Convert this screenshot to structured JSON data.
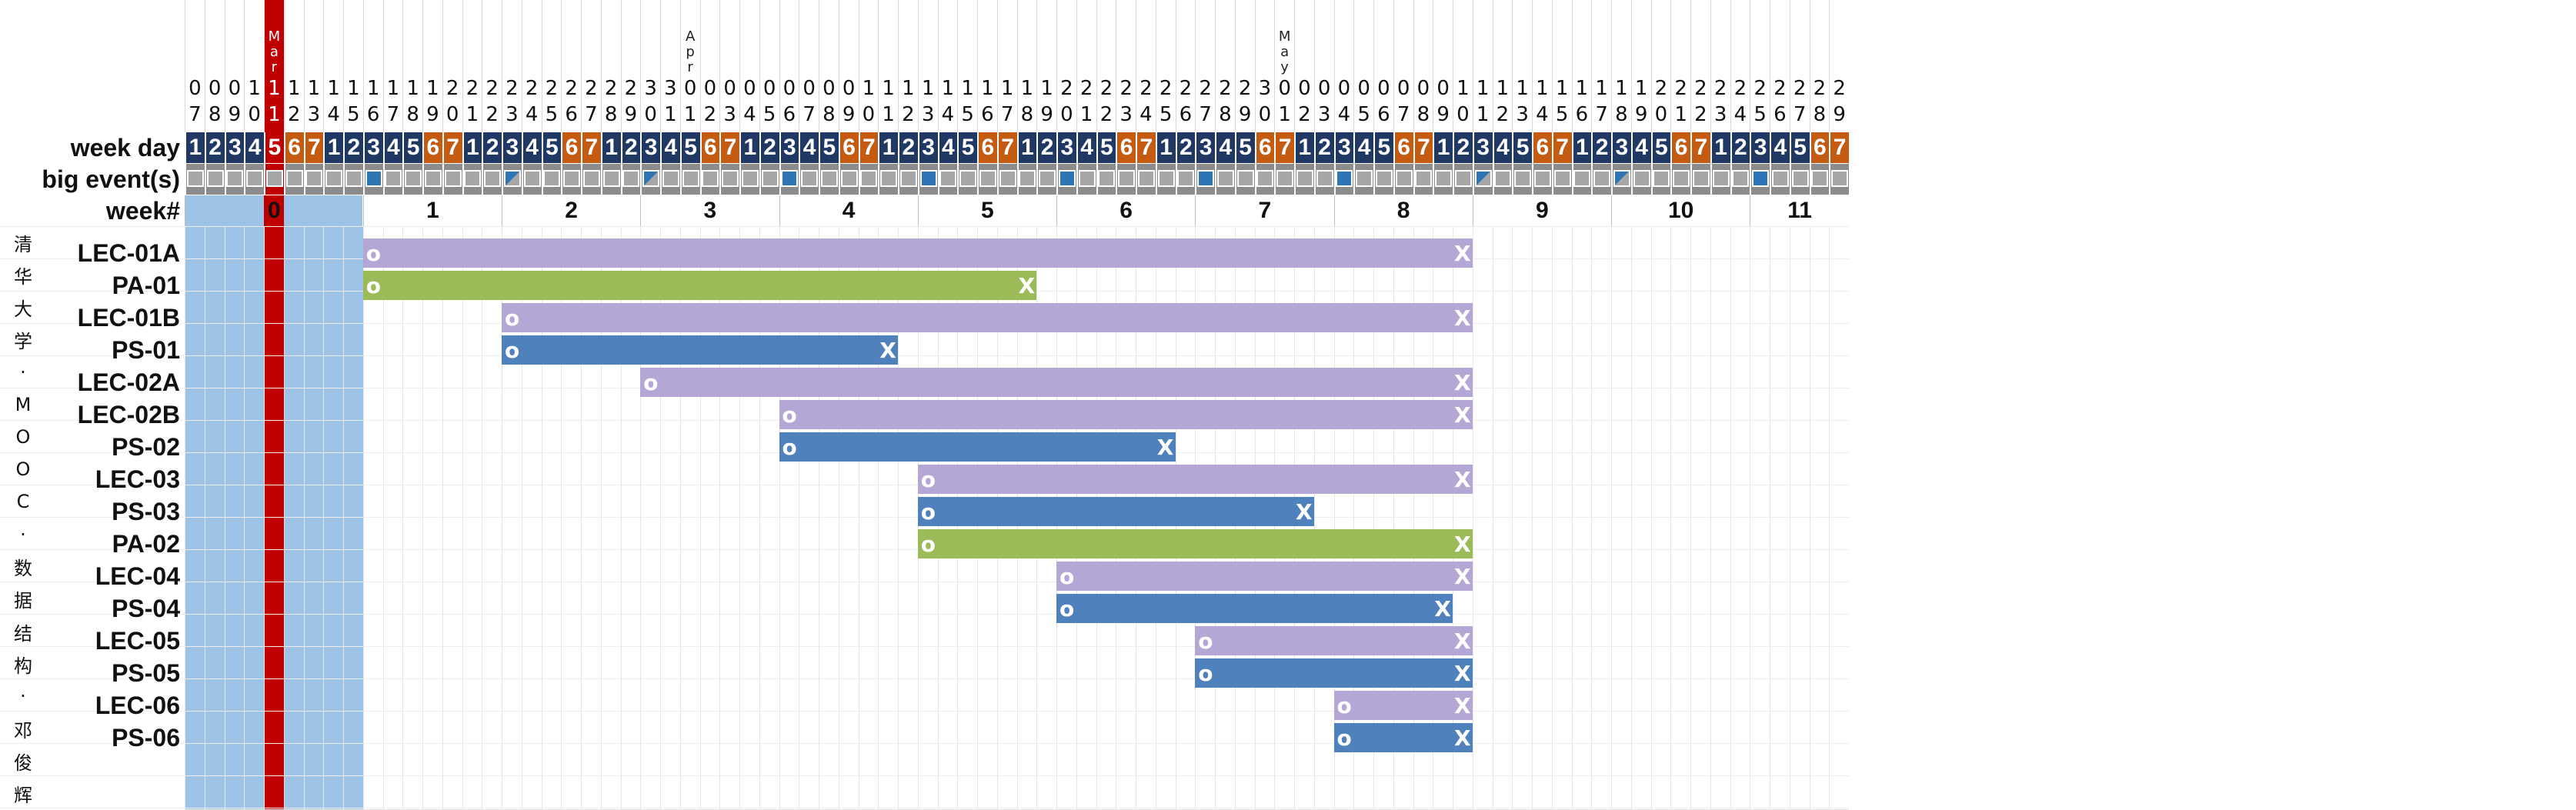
{
  "header": {
    "week_day_label": "week day",
    "big_event_label": "big event(s)",
    "week_label": "week#"
  },
  "days": [
    [
      "0",
      "7"
    ],
    [
      "0",
      "8"
    ],
    [
      "0",
      "9"
    ],
    [
      "1",
      "0"
    ],
    [
      "M",
      "a",
      "r",
      "1",
      "1"
    ],
    [
      "1",
      "2"
    ],
    [
      "1",
      "3"
    ],
    [
      "1",
      "4"
    ],
    [
      "1",
      "5"
    ],
    [
      "1",
      "6"
    ],
    [
      "1",
      "7"
    ],
    [
      "1",
      "8"
    ],
    [
      "1",
      "9"
    ],
    [
      "2",
      "0"
    ],
    [
      "2",
      "1"
    ],
    [
      "2",
      "2"
    ],
    [
      "2",
      "3"
    ],
    [
      "2",
      "4"
    ],
    [
      "2",
      "5"
    ],
    [
      "2",
      "6"
    ],
    [
      "2",
      "7"
    ],
    [
      "2",
      "8"
    ],
    [
      "2",
      "9"
    ],
    [
      "3",
      "0"
    ],
    [
      "3",
      "1"
    ],
    [
      "A",
      "p",
      "r",
      "0",
      "1"
    ],
    [
      "0",
      "2"
    ],
    [
      "0",
      "3"
    ],
    [
      "0",
      "4"
    ],
    [
      "0",
      "5"
    ],
    [
      "0",
      "6"
    ],
    [
      "0",
      "7"
    ],
    [
      "0",
      "8"
    ],
    [
      "0",
      "9"
    ],
    [
      "1",
      "0"
    ],
    [
      "1",
      "1"
    ],
    [
      "1",
      "2"
    ],
    [
      "1",
      "3"
    ],
    [
      "1",
      "4"
    ],
    [
      "1",
      "5"
    ],
    [
      "1",
      "6"
    ],
    [
      "1",
      "7"
    ],
    [
      "1",
      "8"
    ],
    [
      "1",
      "9"
    ],
    [
      "2",
      "0"
    ],
    [
      "2",
      "1"
    ],
    [
      "2",
      "2"
    ],
    [
      "2",
      "3"
    ],
    [
      "2",
      "4"
    ],
    [
      "2",
      "5"
    ],
    [
      "2",
      "6"
    ],
    [
      "2",
      "7"
    ],
    [
      "2",
      "8"
    ],
    [
      "2",
      "9"
    ],
    [
      "3",
      "0"
    ],
    [
      "M",
      "a",
      "y",
      "0",
      "1"
    ],
    [
      "0",
      "2"
    ],
    [
      "0",
      "3"
    ],
    [
      "0",
      "4"
    ],
    [
      "0",
      "5"
    ],
    [
      "0",
      "6"
    ],
    [
      "0",
      "7"
    ],
    [
      "0",
      "8"
    ],
    [
      "0",
      "9"
    ],
    [
      "1",
      "0"
    ],
    [
      "1",
      "1"
    ],
    [
      "1",
      "2"
    ],
    [
      "1",
      "3"
    ],
    [
      "1",
      "4"
    ],
    [
      "1",
      "5"
    ],
    [
      "1",
      "6"
    ],
    [
      "1",
      "7"
    ],
    [
      "1",
      "8"
    ],
    [
      "1",
      "9"
    ],
    [
      "2",
      "0"
    ],
    [
      "2",
      "1"
    ],
    [
      "2",
      "2"
    ],
    [
      "2",
      "3"
    ],
    [
      "2",
      "4"
    ],
    [
      "2",
      "5"
    ],
    [
      "2",
      "6"
    ],
    [
      "2",
      "7"
    ],
    [
      "2",
      "8"
    ],
    [
      "2",
      "9"
    ]
  ],
  "weekdays": [
    "1",
    "2",
    "3",
    "4",
    "5",
    "6",
    "7",
    "1",
    "2",
    "3",
    "4",
    "5",
    "6",
    "7",
    "1",
    "2",
    "3",
    "4",
    "5",
    "6",
    "7",
    "1",
    "2",
    "3",
    "4",
    "5",
    "6",
    "7",
    "1",
    "2",
    "3",
    "4",
    "5",
    "6",
    "7",
    "1",
    "2",
    "3",
    "4",
    "5",
    "6",
    "7",
    "1",
    "2",
    "3",
    "4",
    "5",
    "6",
    "7",
    "1",
    "2",
    "3",
    "4",
    "5",
    "6",
    "7",
    "1",
    "2",
    "3",
    "4",
    "5",
    "6",
    "7",
    "1",
    "2",
    "3",
    "4",
    "5",
    "6",
    "7",
    "1",
    "2",
    "3",
    "4",
    "5",
    "6",
    "7",
    "1",
    "2",
    "3",
    "4",
    "5",
    "6",
    "7"
  ],
  "highlight_day_index": 4,
  "big_events": [
    9,
    16,
    23,
    30,
    37,
    44,
    51,
    58,
    65,
    72,
    79
  ],
  "partial_events": [
    16,
    23,
    65,
    72
  ],
  "weeks": [
    "0",
    "1",
    "2",
    "3",
    "4",
    "5",
    "6",
    "7",
    "8",
    "9",
    "10",
    "11"
  ],
  "side_text": [
    "清",
    "华",
    "大",
    "学",
    "·",
    "M",
    "O",
    "O",
    "C",
    "·",
    "数",
    "据",
    "结",
    "构",
    "·",
    "邓",
    "俊",
    "辉"
  ],
  "tasks": [
    {
      "label": "LEC-01A",
      "start": 9,
      "end": 64,
      "type": "lec",
      "start_mark": "o",
      "end_mark": "X"
    },
    {
      "label": "PA-01",
      "start": 9,
      "end": 42,
      "type": "pa",
      "start_mark": "o",
      "end_mark": "X"
    },
    {
      "label": "LEC-01B",
      "start": 16,
      "end": 64,
      "type": "lec",
      "start_mark": "o",
      "end_mark": "X"
    },
    {
      "label": "PS-01",
      "start": 16,
      "end": 35,
      "type": "ps",
      "start_mark": "o",
      "end_mark": "X"
    },
    {
      "label": "LEC-02A",
      "start": 23,
      "end": 64,
      "type": "lec",
      "start_mark": "o",
      "end_mark": "X"
    },
    {
      "label": "LEC-02B",
      "start": 30,
      "end": 64,
      "type": "lec",
      "start_mark": "o",
      "end_mark": "X"
    },
    {
      "label": "PS-02",
      "start": 30,
      "end": 49,
      "type": "ps",
      "start_mark": "o",
      "end_mark": "X"
    },
    {
      "label": "LEC-03",
      "start": 37,
      "end": 64,
      "type": "lec",
      "start_mark": "o",
      "end_mark": "X"
    },
    {
      "label": "PS-03",
      "start": 37,
      "end": 56,
      "type": "ps",
      "start_mark": "o",
      "end_mark": "X"
    },
    {
      "label": "PA-02",
      "start": 37,
      "end": 64,
      "type": "pa",
      "start_mark": "o",
      "end_mark": "X"
    },
    {
      "label": "LEC-04",
      "start": 44,
      "end": 64,
      "type": "lec",
      "start_mark": "o",
      "end_mark": "X"
    },
    {
      "label": "PS-04",
      "start": 44,
      "end": 63,
      "type": "ps",
      "start_mark": "o",
      "end_mark": "X"
    },
    {
      "label": "LEC-05",
      "start": 51,
      "end": 64,
      "type": "lec",
      "start_mark": "o",
      "end_mark": "X"
    },
    {
      "label": "PS-05",
      "start": 51,
      "end": 64,
      "type": "ps",
      "start_mark": "o",
      "end_mark": "X"
    },
    {
      "label": "LEC-06",
      "start": 58,
      "end": 64,
      "type": "lec",
      "start_mark": "o",
      "end_mark": "X"
    },
    {
      "label": "PS-06",
      "start": 58,
      "end": 64,
      "type": "ps",
      "start_mark": "o",
      "end_mark": "X"
    }
  ],
  "colors": {
    "lec": "#b4a7d6",
    "pa": "#9bbb59",
    "ps": "#4f81bd",
    "weekday": "#1f3864",
    "weekend": "#c55a11",
    "highlight": "#c00000",
    "week0": "#9dc3e6",
    "event": "#8c8c8c"
  }
}
